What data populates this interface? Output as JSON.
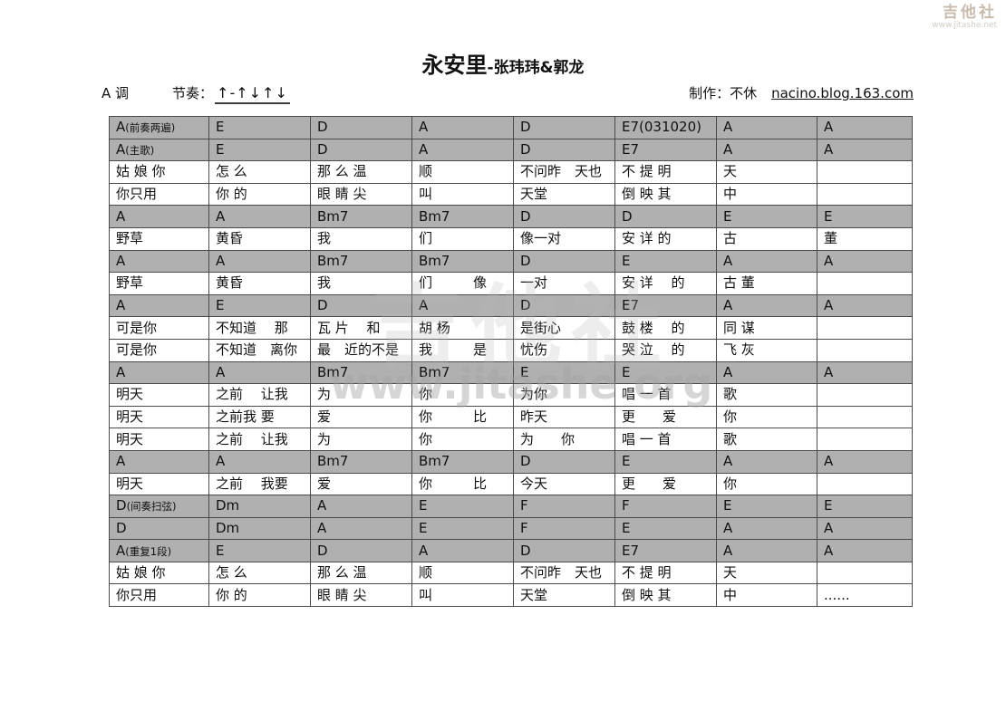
{
  "logo": {
    "brand": "吉他社",
    "url": "www.jitashe.net"
  },
  "watermark": {
    "brand": "吉他社",
    "url": "www.jitashe.org"
  },
  "title": {
    "song": "永安里",
    "artist": "-张玮玮&郭龙"
  },
  "meta": {
    "key": "A 调",
    "rhythm_label": "节奏：",
    "rhythm": "↑-↑↓↑↓",
    "maker": "制作：不休",
    "link": "nacino.blog.163.com"
  },
  "sheet": {
    "columns": 8,
    "rows": [
      {
        "type": "chords",
        "cells": [
          "A(前奏两遍)",
          "E",
          "D",
          "A",
          "D",
          "E7(031020)",
          "A",
          "A"
        ]
      },
      {
        "type": "chords",
        "cells": [
          "A(主歌)",
          "E",
          "D",
          "A",
          "D",
          "E7",
          "A",
          "A"
        ]
      },
      {
        "type": "lyrics",
        "cells": [
          "姑 娘 你",
          "怎 么",
          "那 么 温",
          "顺",
          "不问昨　天也",
          "不 提 明",
          "天",
          ""
        ]
      },
      {
        "type": "lyrics",
        "cells": [
          "你只用",
          "你 的",
          "眼 睛 尖",
          "叫",
          "天堂",
          "倒 映 其",
          "中",
          ""
        ]
      },
      {
        "type": "chords",
        "cells": [
          "A",
          "A",
          "Bm7",
          "Bm7",
          "D",
          "D",
          "E",
          "E"
        ]
      },
      {
        "type": "lyrics",
        "cells": [
          "野草",
          "黄昏",
          "我",
          "们",
          "像一对",
          "安 详 的",
          "古",
          "董"
        ]
      },
      {
        "type": "chords",
        "cells": [
          "A",
          "A",
          "Bm7",
          "Bm7",
          "D",
          "E",
          "A",
          "A"
        ]
      },
      {
        "type": "lyrics",
        "cells": [
          "野草",
          "黄昏",
          "我",
          "们　　　像",
          "一对",
          "安 详　 的",
          "古 董",
          ""
        ]
      },
      {
        "type": "chords",
        "cells": [
          "A",
          "E",
          "D",
          "A",
          "D",
          "E7",
          "A",
          "A"
        ]
      },
      {
        "type": "lyrics",
        "cells": [
          "可是你",
          "不知道　 那",
          "瓦 片　 和",
          "胡 杨",
          "是街心",
          "鼓 楼　 的",
          "同 谋",
          ""
        ]
      },
      {
        "type": "lyrics",
        "cells": [
          "可是你",
          "不知道　离你",
          "最　近的不是",
          "我　　　是",
          "忧伤",
          "哭 泣　 的",
          "飞 灰",
          ""
        ]
      },
      {
        "type": "chords",
        "cells": [
          "A",
          "A",
          "Bm7",
          "Bm7",
          "E",
          "E",
          "A",
          "A"
        ]
      },
      {
        "type": "lyrics",
        "cells": [
          "明天",
          "之前　 让我",
          "为",
          "你",
          "为你",
          "唱 一 首",
          "歌",
          ""
        ]
      },
      {
        "type": "lyrics",
        "cells": [
          "明天",
          "之前我 要",
          "爱",
          "你　　　比",
          "昨天",
          "更　　爱",
          "你",
          ""
        ]
      },
      {
        "type": "lyrics",
        "cells": [
          "明天",
          "之前　 让我",
          "为",
          "你",
          "为　　你",
          "唱 一 首",
          "歌",
          ""
        ]
      },
      {
        "type": "chords",
        "cells": [
          "A",
          "A",
          "Bm7",
          "Bm7",
          "D",
          "E",
          "A",
          "A"
        ]
      },
      {
        "type": "lyrics",
        "cells": [
          "明天",
          "之前　 我要",
          "爱",
          "你　　　比",
          "今天",
          "更　　爱",
          "你",
          ""
        ]
      },
      {
        "type": "chords",
        "cells": [
          "D(间奏扫弦)",
          "Dm",
          "A",
          "E",
          "F",
          "F",
          "E",
          "E"
        ]
      },
      {
        "type": "chords",
        "cells": [
          "D",
          "Dm",
          "A",
          "E",
          "F",
          "E",
          "A",
          "A"
        ]
      },
      {
        "type": "chords",
        "cells": [
          "A(重复1段)",
          "E",
          "D",
          "A",
          "D",
          "E7",
          "A",
          "A"
        ]
      },
      {
        "type": "lyrics",
        "cells": [
          "姑 娘 你",
          "怎 么",
          "那 么 温",
          "顺",
          "不问昨　天也",
          "不 提 明",
          "天",
          ""
        ]
      },
      {
        "type": "lyrics",
        "cells": [
          "你只用",
          "你 的",
          "眼 睛 尖",
          "叫",
          "天堂",
          "倒 映 其",
          "中",
          "......"
        ]
      }
    ]
  }
}
